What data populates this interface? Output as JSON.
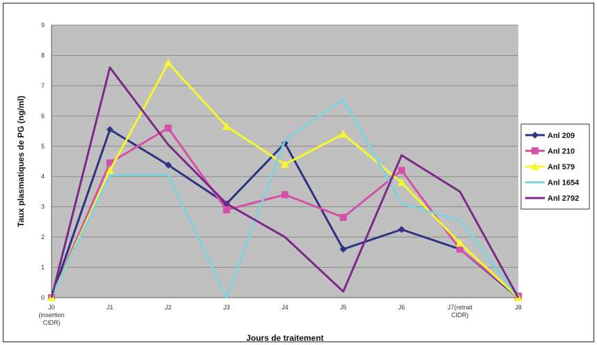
{
  "chart_data": {
    "type": "line",
    "title": "",
    "xlabel": "Jours de traitement",
    "ylabel": "Taux plasmatiques de PG (ng/ml)",
    "categories": [
      [
        "J0",
        "(insertion",
        "CIDR)"
      ],
      [
        "J1"
      ],
      [
        "J2"
      ],
      [
        "J3"
      ],
      [
        "J4"
      ],
      [
        "J5"
      ],
      [
        "J6"
      ],
      [
        "J7(retrait",
        "CIDR)"
      ],
      [
        "J8"
      ]
    ],
    "ylim": [
      0,
      9
    ],
    "yticks": [
      0,
      1,
      2,
      3,
      4,
      5,
      6,
      7,
      8,
      9
    ],
    "grid": true,
    "legend_position": "right",
    "plot_background": "#c0c0c0",
    "series": [
      {
        "name": "Anl 209",
        "color": "#2e3280",
        "marker": "diamond",
        "values": [
          0,
          5.55,
          4.38,
          3.1,
          5.1,
          1.6,
          2.25,
          1.6,
          0
        ]
      },
      {
        "name": "Anl 210",
        "color": "#d64fa8",
        "marker": "square",
        "values": [
          0,
          4.45,
          5.6,
          2.9,
          3.4,
          2.65,
          4.2,
          1.6,
          0.05
        ]
      },
      {
        "name": "Anl 579",
        "color": "#f7f72a",
        "marker": "triangle",
        "values": [
          0,
          4.2,
          7.75,
          5.65,
          4.4,
          5.4,
          3.8,
          1.8,
          0
        ]
      },
      {
        "name": "Anl 1654",
        "color": "#7fd3dc",
        "marker": "none",
        "values": [
          0,
          4.05,
          4.05,
          0,
          5.2,
          6.55,
          3.1,
          2.55,
          0
        ]
      },
      {
        "name": "Anl 2792",
        "color": "#7a2a86",
        "marker": "none",
        "values": [
          0,
          7.6,
          5.05,
          3.1,
          2,
          0.2,
          4.7,
          3.5,
          0
        ]
      }
    ]
  }
}
